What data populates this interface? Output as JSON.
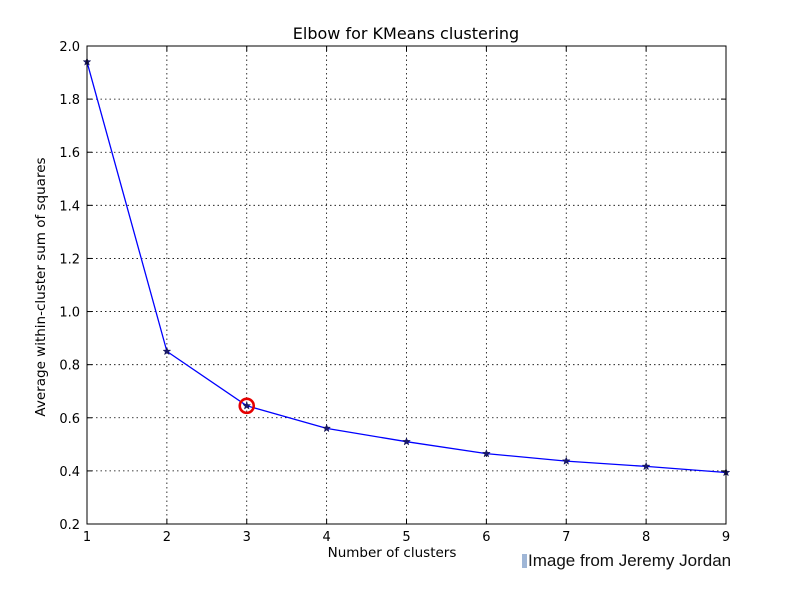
{
  "chart_data": {
    "type": "line",
    "title": "Elbow for KMeans clustering",
    "xlabel": "Number of clusters",
    "ylabel": "Average within-cluster sum of squares",
    "x": [
      1,
      2,
      3,
      4,
      5,
      6,
      7,
      8,
      9
    ],
    "series": [
      {
        "values": [
          1.94,
          0.85,
          0.645,
          0.56,
          0.51,
          0.465,
          0.437,
          0.417,
          0.394
        ],
        "color": "#0000ff",
        "marker": "star"
      }
    ],
    "xlim": [
      1,
      9
    ],
    "ylim": [
      0.2,
      2.0
    ],
    "xticks": [
      "1",
      "2",
      "3",
      "4",
      "5",
      "6",
      "7",
      "8",
      "9"
    ],
    "yticks": [
      "0.2",
      "0.4",
      "0.6",
      "0.8",
      "1.0",
      "1.2",
      "1.4",
      "1.6",
      "1.8",
      "2.0"
    ],
    "grid": true,
    "highlight": {
      "x": 3,
      "y": 0.645,
      "color": "#e60000"
    }
  },
  "credit": "Image from Jeremy Jordan"
}
